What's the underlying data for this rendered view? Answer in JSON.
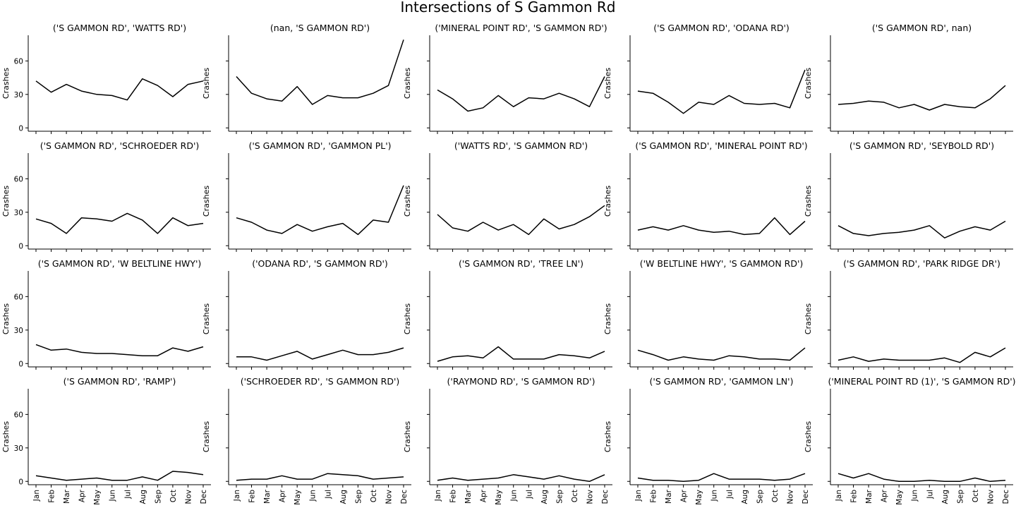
{
  "figure": {
    "title": "Intersections of S Gammon Rd"
  },
  "chart_data": {
    "type": "line",
    "title": "Intersections of S Gammon Rd",
    "categories": [
      "Jan",
      "Feb",
      "Mar",
      "Apr",
      "May",
      "Jun",
      "Jul",
      "Aug",
      "Sep",
      "Oct",
      "Nov",
      "Dec"
    ],
    "ylabel": "Crashes",
    "ylim": [
      -3,
      83
    ],
    "yticks": [
      0,
      30,
      60
    ],
    "grid": false,
    "line_color": "#000000",
    "panels": [
      {
        "title": "('S GAMMON RD', 'WATTS RD')",
        "values": [
          42,
          32,
          39,
          33,
          30,
          29,
          25,
          44,
          38,
          28,
          39,
          42
        ]
      },
      {
        "title": "(nan, 'S GAMMON RD')",
        "values": [
          46,
          31,
          26,
          24,
          37,
          21,
          29,
          27,
          27,
          31,
          38,
          79
        ]
      },
      {
        "title": "('MINERAL POINT RD', 'S GAMMON RD')",
        "values": [
          34,
          26,
          15,
          18,
          29,
          19,
          27,
          26,
          31,
          26,
          19,
          46
        ]
      },
      {
        "title": "('S GAMMON RD', 'ODANA RD')",
        "values": [
          33,
          31,
          23,
          13,
          23,
          21,
          29,
          22,
          21,
          22,
          18,
          52
        ]
      },
      {
        "title": "('S GAMMON RD', nan)",
        "values": [
          21,
          22,
          24,
          23,
          18,
          21,
          16,
          21,
          19,
          18,
          26,
          38
        ]
      },
      {
        "title": "('S GAMMON RD', 'SCHROEDER RD')",
        "values": [
          24,
          20,
          11,
          25,
          24,
          22,
          29,
          23,
          11,
          25,
          18,
          20
        ]
      },
      {
        "title": "('S GAMMON RD', 'GAMMON PL')",
        "values": [
          25,
          21,
          14,
          11,
          19,
          13,
          17,
          20,
          10,
          23,
          21,
          54
        ]
      },
      {
        "title": "('WATTS RD', 'S GAMMON RD')",
        "values": [
          28,
          16,
          13,
          21,
          14,
          19,
          10,
          24,
          15,
          19,
          26,
          36
        ]
      },
      {
        "title": "('S GAMMON RD', 'MINERAL POINT RD')",
        "values": [
          14,
          17,
          14,
          18,
          14,
          12,
          13,
          10,
          11,
          25,
          10,
          22
        ]
      },
      {
        "title": "('S GAMMON RD', 'SEYBOLD RD')",
        "values": [
          18,
          11,
          9,
          11,
          12,
          14,
          18,
          7,
          13,
          17,
          14,
          22
        ]
      },
      {
        "title": "('S GAMMON RD', 'W BELTLINE HWY')",
        "values": [
          17,
          12,
          13,
          10,
          9,
          9,
          8,
          7,
          7,
          14,
          11,
          15
        ]
      },
      {
        "title": "('ODANA RD', 'S GAMMON RD')",
        "values": [
          6,
          6,
          3,
          7,
          11,
          4,
          8,
          12,
          8,
          8,
          10,
          14
        ]
      },
      {
        "title": "('S GAMMON RD', 'TREE LN')",
        "values": [
          2,
          6,
          7,
          5,
          15,
          4,
          4,
          4,
          8,
          7,
          5,
          11
        ]
      },
      {
        "title": "('W BELTLINE HWY', 'S GAMMON RD')",
        "values": [
          12,
          8,
          3,
          6,
          4,
          3,
          7,
          6,
          4,
          4,
          3,
          14
        ]
      },
      {
        "title": "('S GAMMON RD', 'PARK RIDGE DR')",
        "values": [
          3,
          6,
          2,
          4,
          3,
          3,
          3,
          5,
          1,
          10,
          6,
          14
        ]
      },
      {
        "title": "('S GAMMON RD', 'RAMP')",
        "values": [
          5,
          3,
          1,
          2,
          3,
          1,
          1,
          4,
          1,
          9,
          8,
          6
        ]
      },
      {
        "title": "('SCHROEDER RD', 'S GAMMON RD')",
        "values": [
          1,
          2,
          2,
          5,
          2,
          2,
          7,
          6,
          5,
          2,
          3,
          4
        ]
      },
      {
        "title": "('RAYMOND RD', 'S GAMMON RD')",
        "values": [
          1,
          3,
          1,
          2,
          3,
          6,
          4,
          2,
          5,
          2,
          0,
          6
        ]
      },
      {
        "title": "('S GAMMON RD', 'GAMMON LN')",
        "values": [
          3,
          1,
          1,
          0,
          1,
          7,
          2,
          2,
          2,
          1,
          2,
          7
        ]
      },
      {
        "title": "('MINERAL POINT RD (1)', 'S GAMMON RD')",
        "values": [
          7,
          3,
          7,
          2,
          0,
          0,
          1,
          0,
          0,
          3,
          0,
          1
        ]
      }
    ]
  }
}
